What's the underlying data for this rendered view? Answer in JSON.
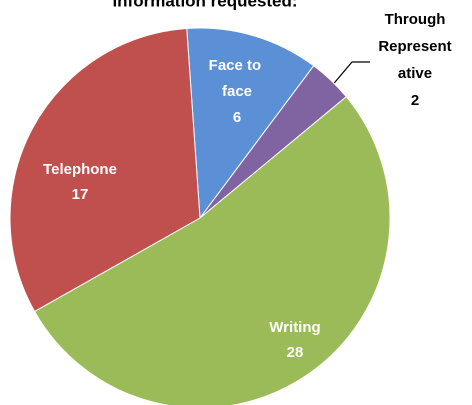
{
  "chart_data": {
    "type": "pie",
    "title": "information requested:",
    "categories": [
      "Face to face",
      "Through Representative",
      "Writing",
      "Telephone"
    ],
    "values": [
      6,
      2,
      28,
      17
    ],
    "colors": [
      "#5b8fd6",
      "#8064a2",
      "#9bbb59",
      "#c0504d"
    ]
  }
}
